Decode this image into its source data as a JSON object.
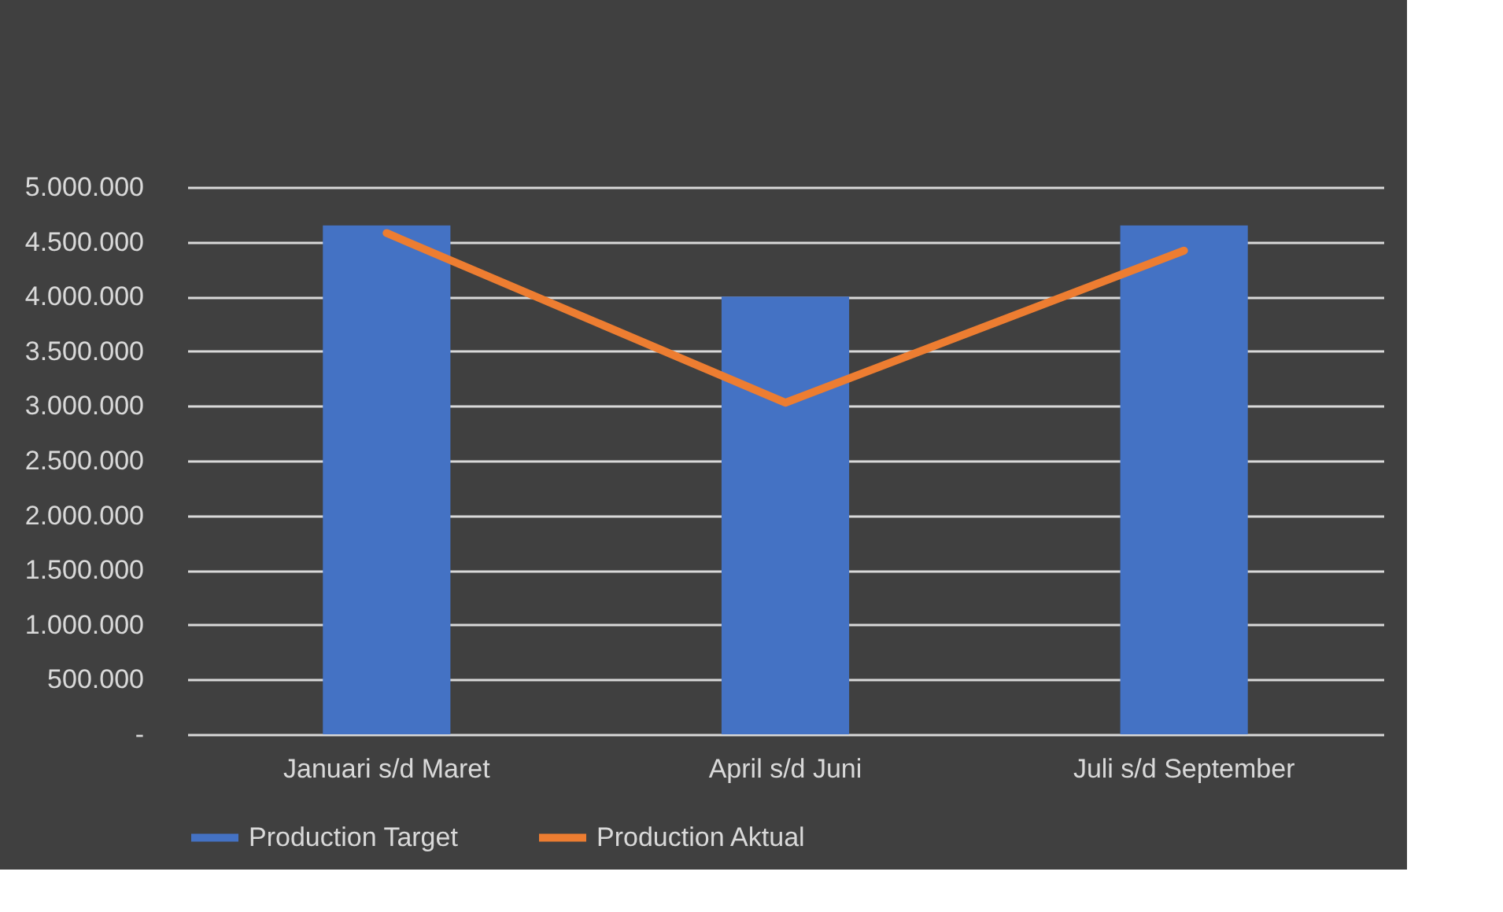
{
  "chart_data": {
    "type": "bar",
    "categories": [
      "Januari s/d Maret",
      "April s/d Juni",
      "Juli s/d September"
    ],
    "series": [
      {
        "name": "Production Target",
        "color": "#4472c4",
        "values": [
          4650000,
          4000000,
          4650000
        ]
      },
      {
        "name": "Production Aktual",
        "type": "line",
        "color": "#ed7d31",
        "values": [
          4580000,
          3030000,
          4420000
        ]
      }
    ],
    "ylim": [
      0,
      5000000
    ],
    "yticks": [
      {
        "value": 0,
        "label": "-"
      },
      {
        "value": 500000,
        "label": "500.000"
      },
      {
        "value": 1000000,
        "label": "1.000.000"
      },
      {
        "value": 1500000,
        "label": "1.500.000"
      },
      {
        "value": 2000000,
        "label": "2.000.000"
      },
      {
        "value": 2500000,
        "label": "2.500.000"
      },
      {
        "value": 3000000,
        "label": "3.000.000"
      },
      {
        "value": 3500000,
        "label": "3.500.000"
      },
      {
        "value": 4000000,
        "label": "4.000.000"
      },
      {
        "value": 4500000,
        "label": "4.500.000"
      },
      {
        "value": 5000000,
        "label": "5.000.000"
      }
    ],
    "grid": "y",
    "legend": "bottom",
    "marker": "none",
    "line_style": "solid"
  }
}
